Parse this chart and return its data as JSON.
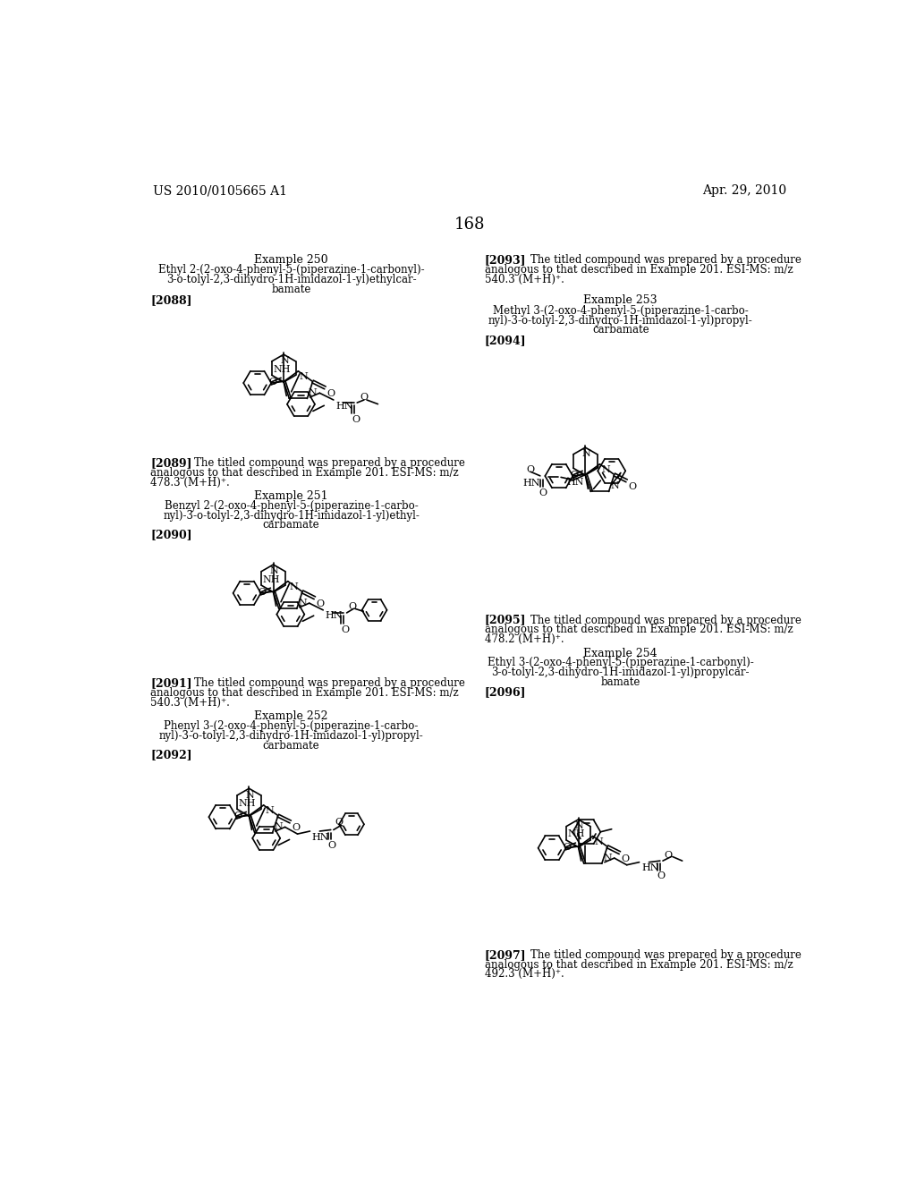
{
  "page_number": "168",
  "header_left": "US 2010/0105665 A1",
  "header_right": "Apr. 29, 2010",
  "bg": "#ffffff",
  "lw": 1.2,
  "ex250_title": "Example 250",
  "ex250_sub1": "Ethyl 2-(2-oxo-4-phenyl-5-(piperazine-1-carbonyl)-",
  "ex250_sub2": "3-o-tolyl-2,3-dihydro-1H-imidazol-1-yl)ethylcar-",
  "ex250_sub3": "bamate",
  "ex250_tag": "[2088]",
  "ex2089": "[2089]   The titled compound was prepared by a procedure\nanalogous to that described in Example 201. ESI-MS: m/z\n478.3 (M+H)⁺.",
  "ex251_title": "Example 251",
  "ex251_sub1": "Benzyl 2-(2-oxo-4-phenyl-5-(piperazine-1-carbo-",
  "ex251_sub2": "nyl)-3-o-tolyl-2,3-dihydro-1H-imidazol-1-yl)ethyl-",
  "ex251_sub3": "carbamate",
  "ex251_tag": "[2090]",
  "ex2091": "[2091]   The titled compound was prepared by a procedure\nanalogous to that described in Example 201. ESI-MS: m/z\n540.3 (M+H)⁺.",
  "ex252_title": "Example 252",
  "ex252_sub1": "Phenyl 3-(2-oxo-4-phenyl-5-(piperazine-1-carbo-",
  "ex252_sub2": "nyl)-3-o-tolyl-2,3-dihydro-1H-imidazol-1-yl)propyl-",
  "ex252_sub3": "carbamate",
  "ex252_tag": "[2092]",
  "ex2093": "[2093]   The titled compound was prepared by a procedure\nanalogous to that described in Example 201. ESI-MS: m/z\n540.3 (M+H)⁺.",
  "ex253_title": "Example 253",
  "ex253_sub1": "Methyl 3-(2-oxo-4-phenyl-5-(piperazine-1-carbo-",
  "ex253_sub2": "nyl)-3-o-tolyl-2,3-dihydro-1H-imidazol-1-yl)propyl-",
  "ex253_sub3": "carbamate",
  "ex253_tag": "[2094]",
  "ex2095": "[2095]   The titled compound was prepared by a procedure\nanalogous to that described in Example 201. ESI-MS: m/z\n478.2 (M+H)⁺.",
  "ex254_title": "Example 254",
  "ex254_sub1": "Ethyl 3-(2-oxo-4-phenyl-5-(piperazine-1-carbonyl)-",
  "ex254_sub2": "3-o-tolyl-2,3-dihydro-1H-imidazol-1-yl)propylcar-",
  "ex254_sub3": "bamate",
  "ex254_tag": "[2096]",
  "ex2097": "[2097]   The titled compound was prepared by a procedure\nanalogous to that described in Example 201. ESI-MS: m/z\n492.3 (M+H)⁺."
}
